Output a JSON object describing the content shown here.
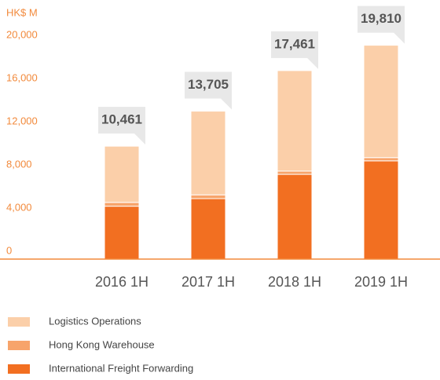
{
  "chart_data": {
    "type": "stacked_bar",
    "y_label": "HK$ M",
    "categories": [
      "2016 1H",
      "2017 1H",
      "2018 1H",
      "2019 1H"
    ],
    "series": [
      {
        "name": "International Freight Forwarding",
        "color": "#f26f21",
        "values": [
          4900,
          5600,
          7850,
          9100
        ]
      },
      {
        "name": "Hong Kong Warehouse",
        "color": "#f7a46b",
        "values": [
          350,
          350,
          300,
          300
        ]
      },
      {
        "name": "Logistics Operations",
        "color": "#fbcfa9",
        "values": [
          5211,
          7755,
          9311,
          10410
        ]
      }
    ],
    "totals": [
      10461,
      13705,
      17461,
      19810
    ],
    "total_labels": [
      "10,461",
      "13,705",
      "17,461",
      "19,810"
    ],
    "ylim": [
      0,
      20000
    ],
    "yticks": [
      0,
      {
        "value": 4000,
        "label": "4,000"
      },
      {
        "value": 8000,
        "label": "8,000"
      },
      {
        "value": 12000,
        "label": "12,000"
      },
      {
        "value": 16000,
        "label": "16,000"
      },
      {
        "value": 20000,
        "label": "20,000"
      }
    ],
    "grid": false,
    "axis_color": "#f28a3c"
  }
}
